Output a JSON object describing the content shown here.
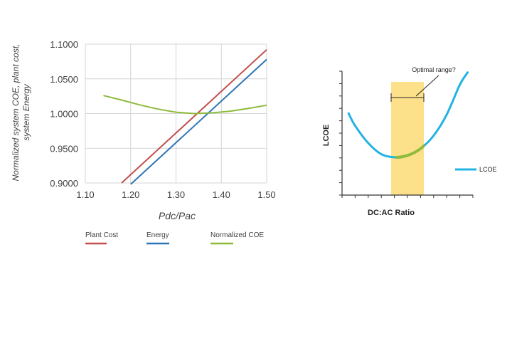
{
  "colors": {
    "plant_cost": "#c0504d",
    "energy": "#2e75b6",
    "normalized_coe": "#8dbb3c",
    "lcoe": "#22b3e3",
    "optimal_band": "#fde08a",
    "grid": "#d4d4d4",
    "axis_text": "#404040"
  },
  "chart_data": [
    {
      "type": "line",
      "title": "",
      "xlabel": "Pdc/Pac",
      "ylabel_lines": [
        "Normalized system COE, plant cost,",
        "system Energy"
      ],
      "xlim": [
        1.1,
        1.5
      ],
      "ylim": [
        0.9,
        1.1
      ],
      "x_ticks": [
        1.1,
        1.2,
        1.3,
        1.4,
        1.5
      ],
      "x_tick_labels": [
        "1.10",
        "1.20",
        "1.30",
        "1.40",
        "1.50"
      ],
      "y_ticks": [
        0.9,
        0.95,
        1.0,
        1.05,
        1.1
      ],
      "y_tick_labels": [
        "0.9000",
        "0.9500",
        "1.0000",
        "1.0500",
        "1.1000"
      ],
      "grid": true,
      "legend_position": "bottom",
      "series": [
        {
          "name": "Plant Cost",
          "color_key": "plant_cost",
          "x": [
            1.18,
            1.5
          ],
          "y": [
            0.9,
            1.092
          ]
        },
        {
          "name": "Energy",
          "color_key": "energy",
          "x": [
            1.2,
            1.5
          ],
          "y": [
            0.898,
            1.078
          ]
        },
        {
          "name": "Normalized COE",
          "color_key": "normalized_coe",
          "x": [
            1.14,
            1.18,
            1.22,
            1.26,
            1.3,
            1.34,
            1.38,
            1.42,
            1.46,
            1.5
          ],
          "y": [
            1.026,
            1.0195,
            1.0125,
            1.0065,
            1.002,
            1.0,
            1.001,
            1.0035,
            1.0075,
            1.012
          ]
        }
      ]
    },
    {
      "type": "line",
      "title": "",
      "xlabel": "DC:AC Ratio",
      "ylabel": "LCOE",
      "xlim": [
        0,
        10
      ],
      "ylim": [
        0,
        10
      ],
      "ticks_labeled": false,
      "x_tick_count": 11,
      "y_tick_count": 11,
      "grid": false,
      "legend_position": "right",
      "annotation": {
        "text": "Optimal range?",
        "band_x": [
          3.75,
          6.25
        ]
      },
      "highlight_x": [
        4.1,
        6.3
      ],
      "series": [
        {
          "name": "LCOE",
          "color_key": "lcoe",
          "x": [
            0.5,
            1,
            2,
            3,
            4,
            5,
            6,
            7,
            8,
            9,
            9.6
          ],
          "y": [
            6.6,
            5.6,
            4.2,
            3.3,
            3.05,
            3.2,
            3.75,
            4.8,
            6.5,
            8.9,
            9.9
          ]
        }
      ]
    }
  ]
}
